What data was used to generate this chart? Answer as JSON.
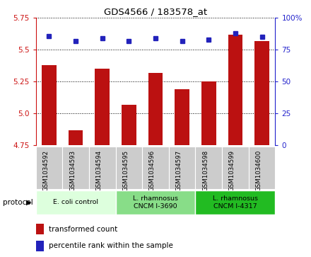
{
  "title": "GDS4566 / 183578_at",
  "samples": [
    "GSM1034592",
    "GSM1034593",
    "GSM1034594",
    "GSM1034595",
    "GSM1034596",
    "GSM1034597",
    "GSM1034598",
    "GSM1034599",
    "GSM1034600"
  ],
  "transformed_count": [
    5.38,
    4.87,
    5.35,
    5.07,
    5.32,
    5.19,
    5.25,
    5.62,
    5.57
  ],
  "percentile_rank": [
    86,
    82,
    84,
    82,
    84,
    82,
    83,
    88,
    85
  ],
  "ylim_left": [
    4.75,
    5.75
  ],
  "ylim_right": [
    0,
    100
  ],
  "yticks_left": [
    4.75,
    5.0,
    5.25,
    5.5,
    5.75
  ],
  "yticks_right": [
    0,
    25,
    50,
    75,
    100
  ],
  "bar_color": "#bb1111",
  "dot_color": "#2222bb",
  "protocols": [
    {
      "label": "E. coli control",
      "start": 0,
      "end": 3,
      "color": "#ddffdd"
    },
    {
      "label": "L. rhamnosus\nCNCM I-3690",
      "start": 3,
      "end": 6,
      "color": "#88dd88"
    },
    {
      "label": "L. rhamnosus\nCNCM I-4317",
      "start": 6,
      "end": 9,
      "color": "#22bb22"
    }
  ],
  "legend_items": [
    {
      "color": "#bb1111",
      "label": "transformed count"
    },
    {
      "color": "#2222bb",
      "label": "percentile rank within the sample"
    }
  ],
  "tick_color_left": "#cc1111",
  "tick_color_right": "#2222cc",
  "bar_bottom": 4.75,
  "fig_width": 4.4,
  "fig_height": 3.63,
  "fig_dpi": 100
}
